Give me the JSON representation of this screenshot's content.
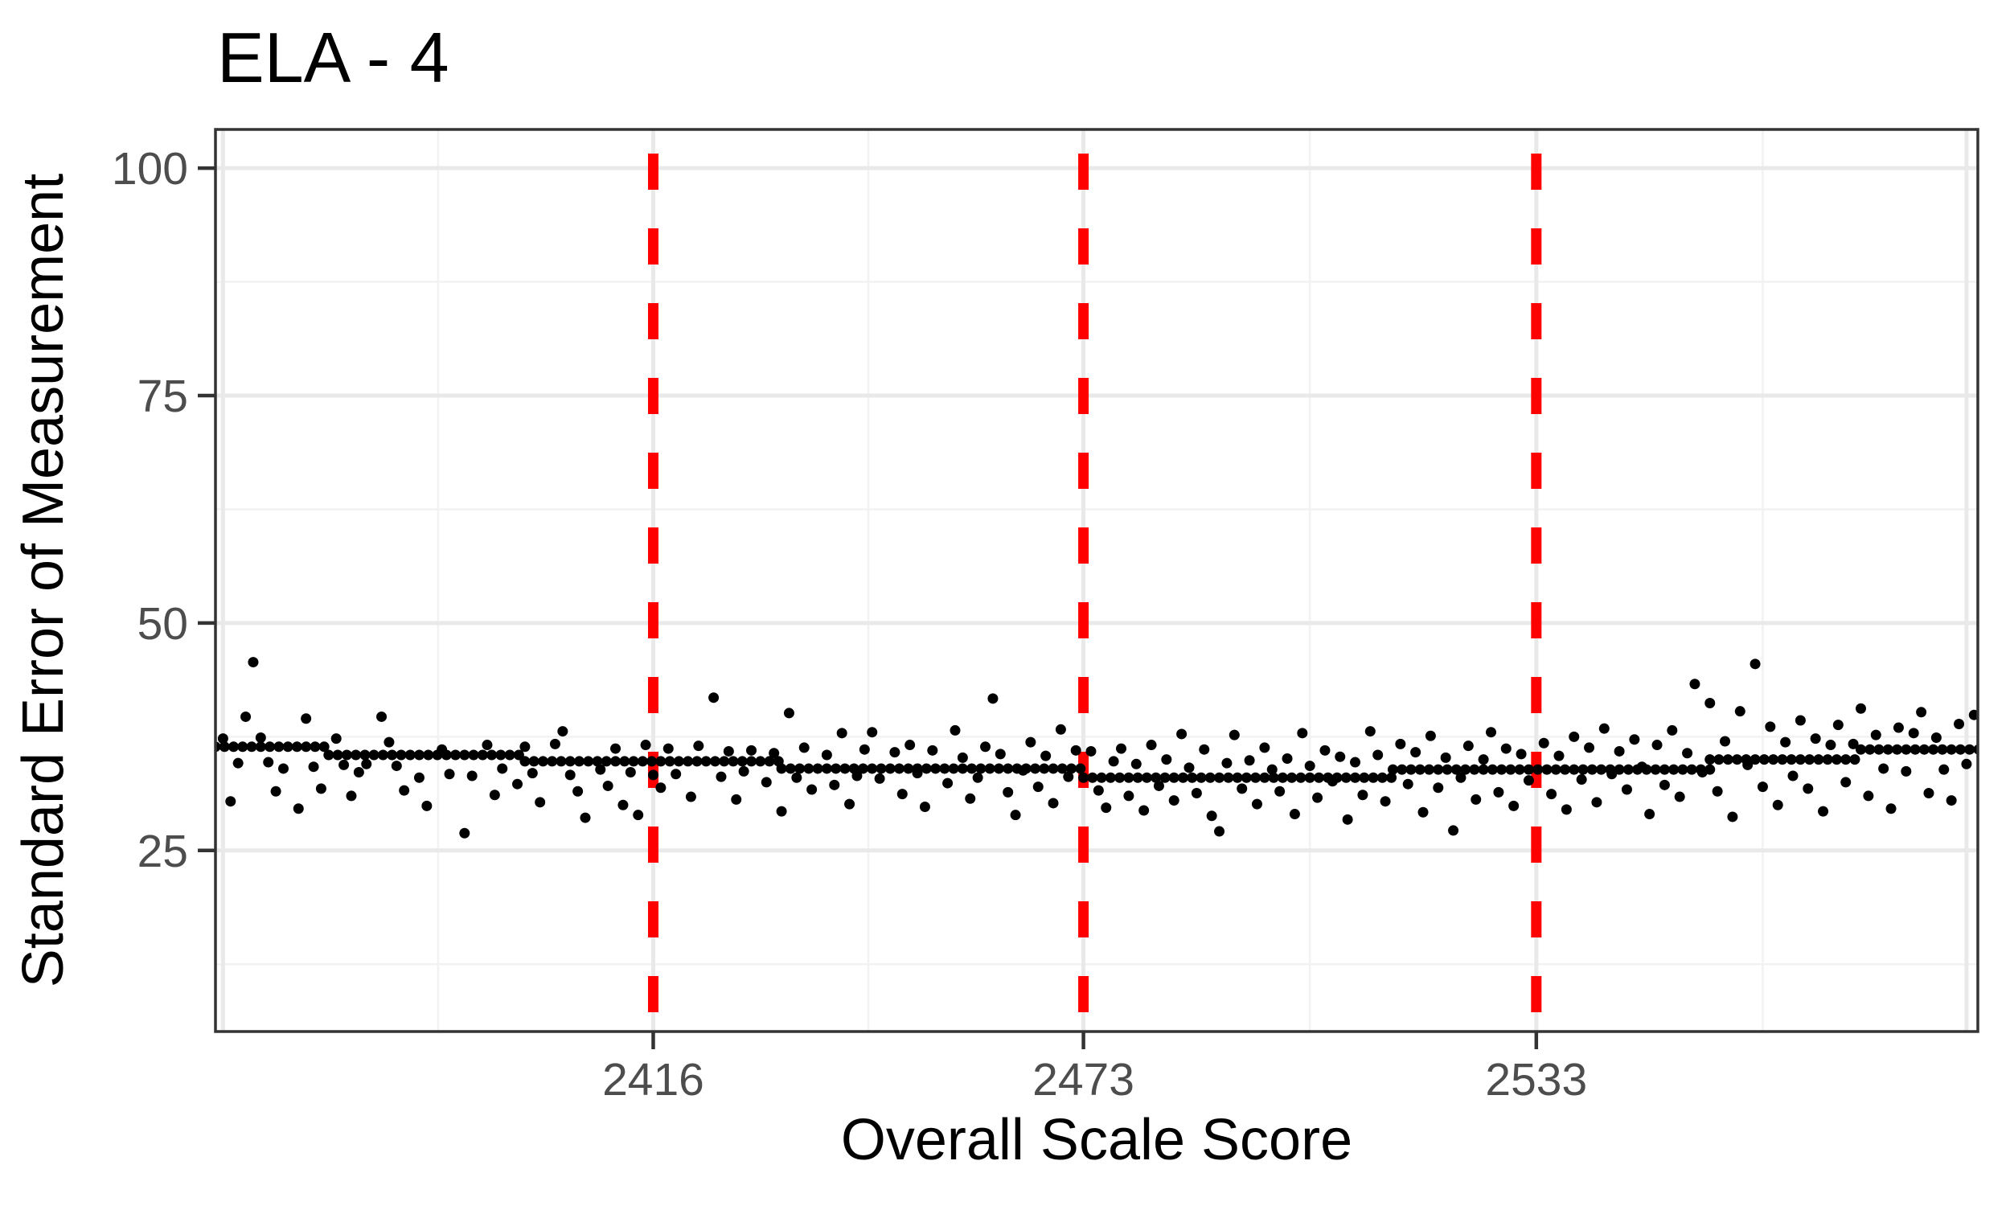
{
  "title": "ELA - 4",
  "x_axis": {
    "label": "Overall Scale Score",
    "tick_labels": [
      "2416",
      "2473",
      "2533"
    ]
  },
  "y_axis": {
    "label": "Standard Error of Measurement",
    "tick_labels": [
      "25",
      "50",
      "75",
      "100"
    ]
  },
  "colors": {
    "cutline_red": "#FF0000",
    "point_black": "#000000",
    "grid_major": "#E9E9E9",
    "grid_minor": "#F2F2F2",
    "panel_border": "#333333",
    "tick_mark": "#333333",
    "tick_label_grey": "#4D4D4D",
    "title_text": "#000000",
    "background": "#FFFFFF"
  },
  "chart_data": {
    "type": "scatter",
    "title": "ELA - 4",
    "xlabel": "Overall Scale Score",
    "ylabel": "Standard Error of Measurement",
    "xlim": [
      2358,
      2591.5
    ],
    "ylim": [
      5.1,
      104.25
    ],
    "x_ticks": [
      2416,
      2473,
      2533
    ],
    "y_ticks": [
      25,
      50,
      75,
      100
    ],
    "x_grid_major": [
      2359,
      2416,
      2473,
      2533,
      2590
    ],
    "x_grid_minor": [
      2387.5,
      2444.5,
      2503,
      2563
    ],
    "y_grid_major": [
      25,
      50,
      75,
      100
    ],
    "y_grid_minor": [
      12.5,
      37.5,
      62.5,
      87.5
    ],
    "grid": "on",
    "legend": "none",
    "cut_scores": [
      2416,
      2473,
      2533
    ],
    "sem_spine_segments": [
      {
        "from": 2358,
        "to": 2373,
        "sem": 36.4
      },
      {
        "from": 2373,
        "to": 2399,
        "sem": 35.5
      },
      {
        "from": 2399,
        "to": 2433,
        "sem": 34.8
      },
      {
        "from": 2433,
        "to": 2473,
        "sem": 34.0
      },
      {
        "from": 2473,
        "to": 2514,
        "sem": 33.0
      },
      {
        "from": 2514,
        "to": 2556,
        "sem": 33.9
      },
      {
        "from": 2556,
        "to": 2576,
        "sem": 35.0
      },
      {
        "from": 2576,
        "to": 2592,
        "sem": 36.1
      }
    ],
    "scatter_points": [
      [
        2359,
        37.3
      ],
      [
        2360,
        30.4
      ],
      [
        2361,
        34.6
      ],
      [
        2362,
        39.7
      ],
      [
        2363,
        45.7
      ],
      [
        2364,
        37.4
      ],
      [
        2365,
        34.7
      ],
      [
        2366,
        31.5
      ],
      [
        2367,
        34.0
      ],
      [
        2369,
        29.6
      ],
      [
        2370,
        39.5
      ],
      [
        2371,
        34.2
      ],
      [
        2372,
        31.8
      ],
      [
        2374,
        37.3
      ],
      [
        2375,
        34.4
      ],
      [
        2376,
        31.0
      ],
      [
        2377,
        33.6
      ],
      [
        2378,
        34.5
      ],
      [
        2380,
        39.7
      ],
      [
        2381,
        36.9
      ],
      [
        2382,
        34.3
      ],
      [
        2383,
        31.6
      ],
      [
        2385,
        33.0
      ],
      [
        2386,
        29.9
      ],
      [
        2388,
        36.1
      ],
      [
        2389,
        33.4
      ],
      [
        2391,
        26.9
      ],
      [
        2392,
        33.2
      ],
      [
        2394,
        36.6
      ],
      [
        2395,
        31.1
      ],
      [
        2396,
        34.0
      ],
      [
        2398,
        32.3
      ],
      [
        2399,
        36.4
      ],
      [
        2400,
        33.5
      ],
      [
        2401,
        30.3
      ],
      [
        2403,
        36.7
      ],
      [
        2404,
        38.1
      ],
      [
        2405,
        33.3
      ],
      [
        2406,
        31.5
      ],
      [
        2407,
        28.6
      ],
      [
        2409,
        33.9
      ],
      [
        2410,
        32.1
      ],
      [
        2411,
        36.2
      ],
      [
        2412,
        30.0
      ],
      [
        2413,
        33.6
      ],
      [
        2414,
        28.9
      ],
      [
        2415,
        36.6
      ],
      [
        2416,
        33.3
      ],
      [
        2417,
        31.9
      ],
      [
        2418,
        36.2
      ],
      [
        2419,
        33.4
      ],
      [
        2421,
        30.9
      ],
      [
        2422,
        36.5
      ],
      [
        2424,
        41.8
      ],
      [
        2425,
        33.1
      ],
      [
        2426,
        35.9
      ],
      [
        2427,
        30.6
      ],
      [
        2428,
        33.7
      ],
      [
        2429,
        36.0
      ],
      [
        2431,
        32.5
      ],
      [
        2432,
        35.7
      ],
      [
        2433,
        29.3
      ],
      [
        2434,
        40.1
      ],
      [
        2435,
        33.0
      ],
      [
        2436,
        36.3
      ],
      [
        2437,
        31.7
      ],
      [
        2439,
        35.5
      ],
      [
        2440,
        32.2
      ],
      [
        2441,
        37.9
      ],
      [
        2442,
        30.1
      ],
      [
        2443,
        33.2
      ],
      [
        2444,
        36.1
      ],
      [
        2445,
        38.0
      ],
      [
        2446,
        32.9
      ],
      [
        2448,
        35.8
      ],
      [
        2449,
        31.2
      ],
      [
        2450,
        36.6
      ],
      [
        2451,
        33.5
      ],
      [
        2452,
        29.8
      ],
      [
        2453,
        36.0
      ],
      [
        2455,
        32.4
      ],
      [
        2456,
        38.2
      ],
      [
        2457,
        35.2
      ],
      [
        2458,
        30.7
      ],
      [
        2459,
        33.0
      ],
      [
        2460,
        36.4
      ],
      [
        2461,
        41.7
      ],
      [
        2462,
        35.6
      ],
      [
        2463,
        31.4
      ],
      [
        2464,
        28.9
      ],
      [
        2465,
        33.8
      ],
      [
        2466,
        36.9
      ],
      [
        2467,
        32.0
      ],
      [
        2468,
        35.4
      ],
      [
        2469,
        30.2
      ],
      [
        2470,
        38.3
      ],
      [
        2471,
        33.1
      ],
      [
        2472,
        36.0
      ],
      [
        2474,
        35.9
      ],
      [
        2475,
        31.6
      ],
      [
        2476,
        29.7
      ],
      [
        2477,
        34.8
      ],
      [
        2478,
        36.2
      ],
      [
        2479,
        31.0
      ],
      [
        2480,
        34.5
      ],
      [
        2481,
        29.4
      ],
      [
        2482,
        36.6
      ],
      [
        2483,
        32.1
      ],
      [
        2484,
        35.0
      ],
      [
        2485,
        30.5
      ],
      [
        2486,
        37.8
      ],
      [
        2487,
        34.1
      ],
      [
        2488,
        31.3
      ],
      [
        2489,
        36.1
      ],
      [
        2490,
        28.8
      ],
      [
        2491,
        27.1
      ],
      [
        2492,
        34.6
      ],
      [
        2493,
        37.7
      ],
      [
        2494,
        31.8
      ],
      [
        2495,
        34.9
      ],
      [
        2496,
        30.1
      ],
      [
        2497,
        36.3
      ],
      [
        2498,
        33.9
      ],
      [
        2499,
        31.5
      ],
      [
        2500,
        35.1
      ],
      [
        2501,
        29.0
      ],
      [
        2502,
        37.9
      ],
      [
        2503,
        34.3
      ],
      [
        2504,
        30.8
      ],
      [
        2505,
        36.0
      ],
      [
        2506,
        32.6
      ],
      [
        2507,
        35.3
      ],
      [
        2508,
        28.4
      ],
      [
        2509,
        34.7
      ],
      [
        2510,
        31.1
      ],
      [
        2511,
        38.1
      ],
      [
        2512,
        35.5
      ],
      [
        2513,
        30.4
      ],
      [
        2515,
        36.7
      ],
      [
        2516,
        32.3
      ],
      [
        2517,
        35.8
      ],
      [
        2518,
        29.2
      ],
      [
        2519,
        37.6
      ],
      [
        2520,
        31.9
      ],
      [
        2521,
        35.2
      ],
      [
        2522,
        27.2
      ],
      [
        2523,
        33.0
      ],
      [
        2524,
        36.5
      ],
      [
        2525,
        30.6
      ],
      [
        2526,
        35.0
      ],
      [
        2527,
        38.0
      ],
      [
        2528,
        31.4
      ],
      [
        2529,
        36.2
      ],
      [
        2530,
        29.9
      ],
      [
        2531,
        35.6
      ],
      [
        2532,
        32.7
      ],
      [
        2534,
        36.8
      ],
      [
        2535,
        31.2
      ],
      [
        2536,
        35.4
      ],
      [
        2537,
        29.5
      ],
      [
        2538,
        37.5
      ],
      [
        2539,
        32.8
      ],
      [
        2540,
        36.3
      ],
      [
        2541,
        30.3
      ],
      [
        2542,
        38.4
      ],
      [
        2543,
        33.4
      ],
      [
        2544,
        35.9
      ],
      [
        2545,
        31.7
      ],
      [
        2546,
        37.2
      ],
      [
        2547,
        34.2
      ],
      [
        2548,
        29.0
      ],
      [
        2549,
        36.6
      ],
      [
        2550,
        32.2
      ],
      [
        2551,
        38.2
      ],
      [
        2552,
        30.9
      ],
      [
        2553,
        35.7
      ],
      [
        2554,
        43.3
      ],
      [
        2555,
        33.6
      ],
      [
        2556,
        41.2
      ],
      [
        2557,
        31.5
      ],
      [
        2558,
        37.0
      ],
      [
        2559,
        28.7
      ],
      [
        2560,
        40.3
      ],
      [
        2561,
        34.4
      ],
      [
        2562,
        45.5
      ],
      [
        2563,
        32.0
      ],
      [
        2564,
        38.6
      ],
      [
        2565,
        30.0
      ],
      [
        2566,
        36.9
      ],
      [
        2567,
        33.2
      ],
      [
        2568,
        39.3
      ],
      [
        2569,
        31.8
      ],
      [
        2570,
        37.3
      ],
      [
        2571,
        29.3
      ],
      [
        2572,
        36.6
      ],
      [
        2573,
        38.8
      ],
      [
        2574,
        32.5
      ],
      [
        2575,
        36.7
      ],
      [
        2576,
        40.6
      ],
      [
        2577,
        31.0
      ],
      [
        2578,
        37.7
      ],
      [
        2579,
        34.0
      ],
      [
        2580,
        29.6
      ],
      [
        2581,
        38.5
      ],
      [
        2582,
        33.7
      ],
      [
        2583,
        37.9
      ],
      [
        2584,
        40.2
      ],
      [
        2585,
        31.3
      ],
      [
        2586,
        37.4
      ],
      [
        2587,
        33.9
      ],
      [
        2588,
        30.5
      ],
      [
        2589,
        38.9
      ],
      [
        2590,
        34.5
      ],
      [
        2591,
        39.9
      ]
    ]
  }
}
